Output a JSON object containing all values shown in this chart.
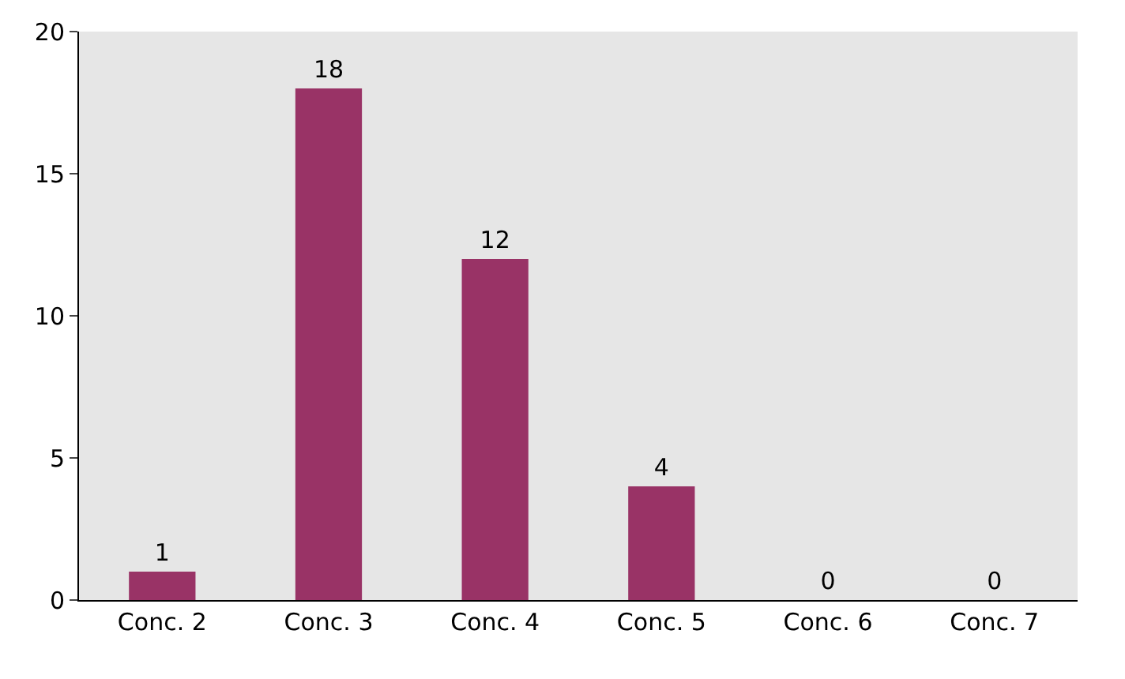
{
  "chart_data": {
    "type": "bar",
    "categories": [
      "Conc. 2",
      "Conc. 3",
      "Conc. 4",
      "Conc. 5",
      "Conc. 6",
      "Conc. 7"
    ],
    "values": [
      1,
      18,
      12,
      4,
      0,
      0
    ],
    "color": "#993366",
    "ylim": [
      0,
      20
    ],
    "yticks": [
      0,
      5,
      10,
      15,
      20
    ],
    "grid": false,
    "data_labels": true
  }
}
